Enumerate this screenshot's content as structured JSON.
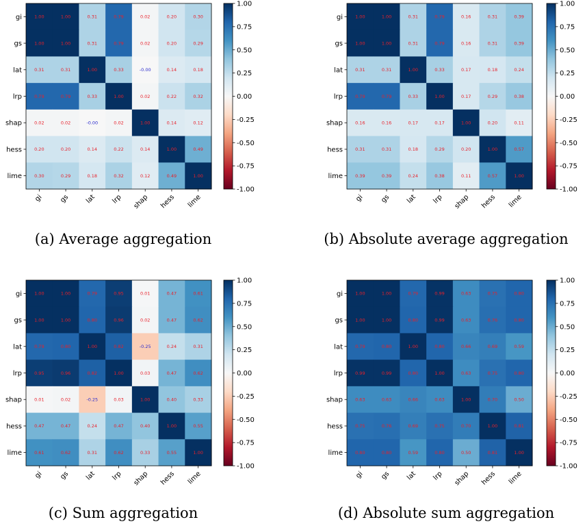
{
  "chart_data": [
    {
      "type": "heatmap",
      "caption": "(a) Average aggregation",
      "labels": [
        "gi",
        "gs",
        "lat",
        "lrp",
        "shap",
        "hess",
        "lime"
      ],
      "values": [
        [
          1.0,
          1.0,
          0.31,
          0.79,
          0.02,
          0.2,
          0.3
        ],
        [
          1.0,
          1.0,
          0.31,
          0.79,
          0.02,
          0.2,
          0.29
        ],
        [
          0.31,
          0.31,
          1.0,
          0.33,
          -0.0,
          0.14,
          0.18
        ],
        [
          0.79,
          0.79,
          0.33,
          1.0,
          0.02,
          0.22,
          0.32
        ],
        [
          0.02,
          0.02,
          -0.0,
          0.02,
          1.0,
          0.14,
          0.12
        ],
        [
          0.2,
          0.2,
          0.14,
          0.22,
          0.14,
          1.0,
          0.49
        ],
        [
          0.3,
          0.29,
          0.18,
          0.32,
          0.12,
          0.49,
          1.0
        ]
      ],
      "vmin": -1.0,
      "vmax": 1.0,
      "colormap": "RdBu",
      "colorbar_ticks": [
        "-1.00",
        "-0.75",
        "-0.50",
        "-0.25",
        "0.00",
        "0.25",
        "0.50",
        "0.75",
        "1.00"
      ]
    },
    {
      "type": "heatmap",
      "caption": "(b) Absolute average aggregation",
      "labels": [
        "gi",
        "gs",
        "lat",
        "lrp",
        "shap",
        "hess",
        "lime"
      ],
      "values": [
        [
          1.0,
          1.0,
          0.31,
          0.79,
          0.16,
          0.31,
          0.39
        ],
        [
          1.0,
          1.0,
          0.31,
          0.79,
          0.16,
          0.31,
          0.39
        ],
        [
          0.31,
          0.31,
          1.0,
          0.33,
          0.17,
          0.18,
          0.24
        ],
        [
          0.79,
          0.79,
          0.33,
          1.0,
          0.17,
          0.29,
          0.38
        ],
        [
          0.16,
          0.16,
          0.17,
          0.17,
          1.0,
          0.2,
          0.11
        ],
        [
          0.31,
          0.31,
          0.18,
          0.29,
          0.2,
          1.0,
          0.57
        ],
        [
          0.39,
          0.39,
          0.24,
          0.38,
          0.11,
          0.57,
          1.0
        ]
      ],
      "vmin": -1.0,
      "vmax": 1.0,
      "colormap": "RdBu",
      "colorbar_ticks": [
        "-1.00",
        "-0.75",
        "-0.50",
        "-0.25",
        "0.00",
        "0.25",
        "0.50",
        "0.75",
        "1.00"
      ]
    },
    {
      "type": "heatmap",
      "caption": "(c) Sum aggregation",
      "labels": [
        "gi",
        "gs",
        "lat",
        "lrp",
        "shap",
        "hess",
        "lime"
      ],
      "values": [
        [
          1.0,
          1.0,
          0.79,
          0.95,
          0.01,
          0.47,
          0.61
        ],
        [
          1.0,
          1.0,
          0.8,
          0.96,
          0.02,
          0.47,
          0.62
        ],
        [
          0.79,
          0.8,
          1.0,
          0.82,
          -0.25,
          0.24,
          0.31
        ],
        [
          0.95,
          0.96,
          0.82,
          1.0,
          0.03,
          0.47,
          0.62
        ],
        [
          0.01,
          0.02,
          -0.25,
          0.03,
          1.0,
          0.4,
          0.33
        ],
        [
          0.47,
          0.47,
          0.24,
          0.47,
          0.4,
          1.0,
          0.55
        ],
        [
          0.61,
          0.62,
          0.31,
          0.62,
          0.33,
          0.55,
          1.0
        ]
      ],
      "vmin": -1.0,
      "vmax": 1.0,
      "colormap": "RdBu",
      "colorbar_ticks": [
        "-1.00",
        "-0.75",
        "-0.50",
        "-0.25",
        "0.00",
        "0.25",
        "0.50",
        "0.75",
        "1.00"
      ]
    },
    {
      "type": "heatmap",
      "caption": "(d) Absolute sum aggregation",
      "labels": [
        "gi",
        "gs",
        "lat",
        "lrp",
        "shap",
        "hess",
        "lime"
      ],
      "values": [
        [
          1.0,
          1.0,
          0.79,
          0.99,
          0.63,
          0.75,
          0.8
        ],
        [
          1.0,
          1.0,
          0.8,
          0.99,
          0.63,
          0.76,
          0.8
        ],
        [
          0.79,
          0.8,
          1.0,
          0.8,
          0.66,
          0.69,
          0.59
        ],
        [
          0.99,
          0.99,
          0.8,
          1.0,
          0.63,
          0.75,
          0.8
        ],
        [
          0.63,
          0.63,
          0.66,
          0.63,
          1.0,
          0.7,
          0.5
        ],
        [
          0.75,
          0.76,
          0.69,
          0.75,
          0.7,
          1.0,
          0.81
        ],
        [
          0.8,
          0.8,
          0.59,
          0.8,
          0.5,
          0.81,
          1.0
        ]
      ],
      "vmin": -1.0,
      "vmax": 1.0,
      "colormap": "RdBu",
      "colorbar_ticks": [
        "-1.00",
        "-0.75",
        "-0.50",
        "-0.25",
        "0.00",
        "0.25",
        "0.50",
        "0.75",
        "1.00"
      ]
    }
  ],
  "colors": {
    "positive_text": "#e8202a",
    "negative_text": "#2a2acc",
    "rdbu_stops": [
      "#67001f",
      "#b2182b",
      "#d6604d",
      "#f4a582",
      "#fddbc7",
      "#f7f7f7",
      "#d1e5f0",
      "#92c5de",
      "#4393c3",
      "#2166ac",
      "#053061"
    ]
  }
}
